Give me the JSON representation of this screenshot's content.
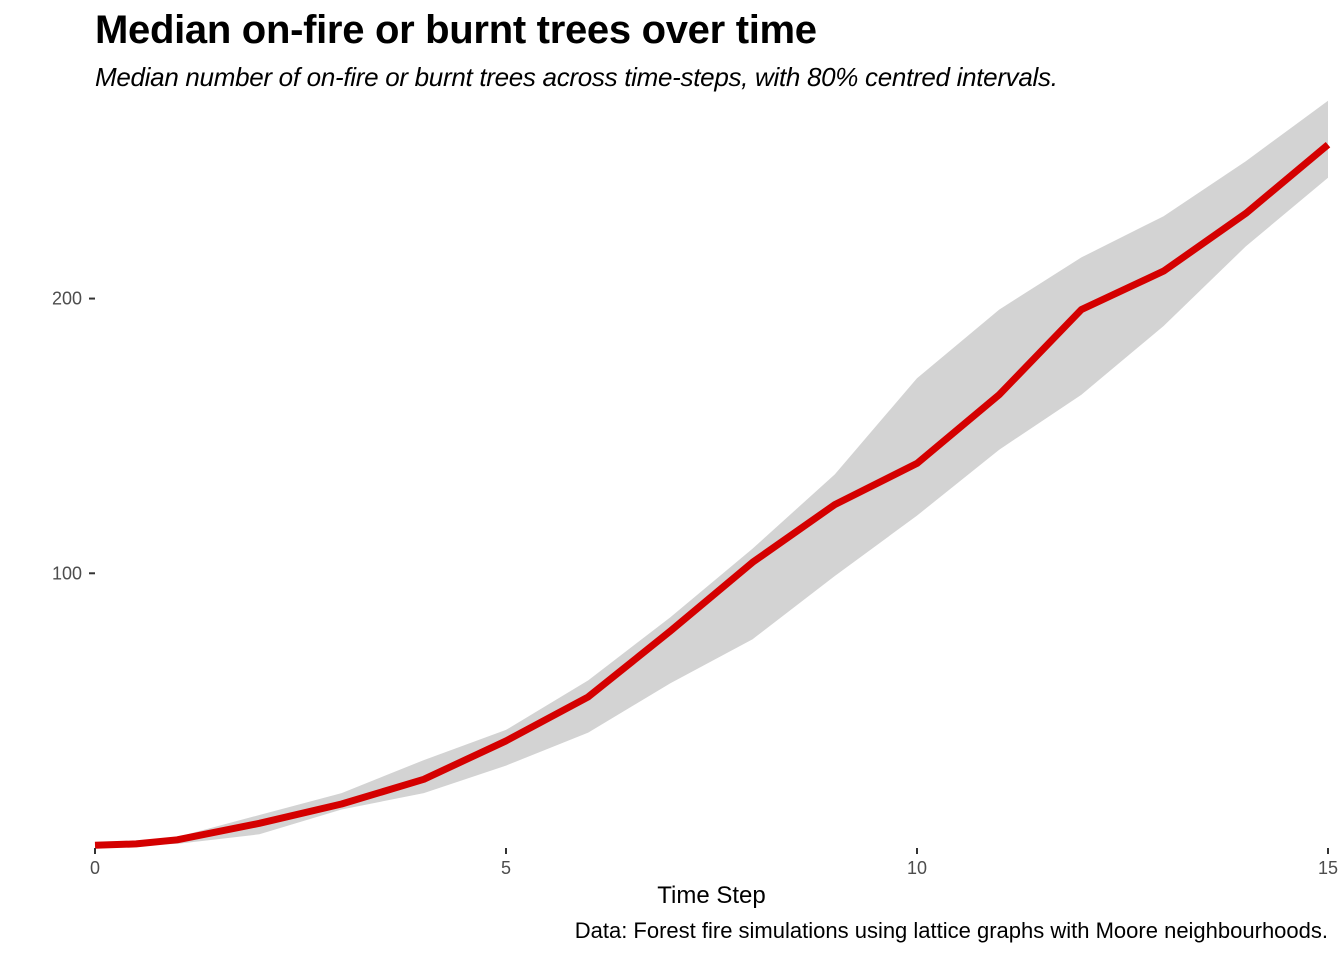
{
  "chart_data": {
    "type": "line",
    "title": "Median on-fire or burnt trees over time",
    "subtitle": "Median number of on-fire or burnt trees across time-steps, with 80% centred intervals.",
    "caption": "Data: Forest fire simulations using lattice graphs with Moore neighbourhoods.",
    "xlabel": "Time Step",
    "ylabel": "",
    "xlim": [
      0,
      15
    ],
    "ylim": [
      0,
      265
    ],
    "x_ticks": [
      0,
      5,
      10,
      15
    ],
    "y_ticks": [
      100,
      200
    ],
    "grid": false,
    "legend": "none",
    "band_color": "#d3d3d3",
    "line_color": "#d40000",
    "x": [
      0,
      0.5,
      1,
      2,
      3,
      4,
      5,
      6,
      7,
      8,
      9,
      10,
      11,
      12,
      13,
      14,
      15
    ],
    "series": [
      {
        "values": [
          1,
          1.5,
          3,
          9,
          16,
          25,
          39,
          55,
          79,
          104,
          125,
          140,
          165,
          196,
          210,
          231,
          256
        ]
      }
    ],
    "interval": {
      "lower": [
        1,
        1,
        1.5,
        5,
        14,
        20,
        30,
        42,
        60,
        76,
        99,
        121,
        145,
        165,
        190,
        219,
        244
      ],
      "upper": [
        1,
        2,
        4,
        12,
        20,
        32,
        43,
        61,
        84,
        109,
        136,
        171,
        196,
        215,
        230,
        250,
        272
      ]
    }
  }
}
